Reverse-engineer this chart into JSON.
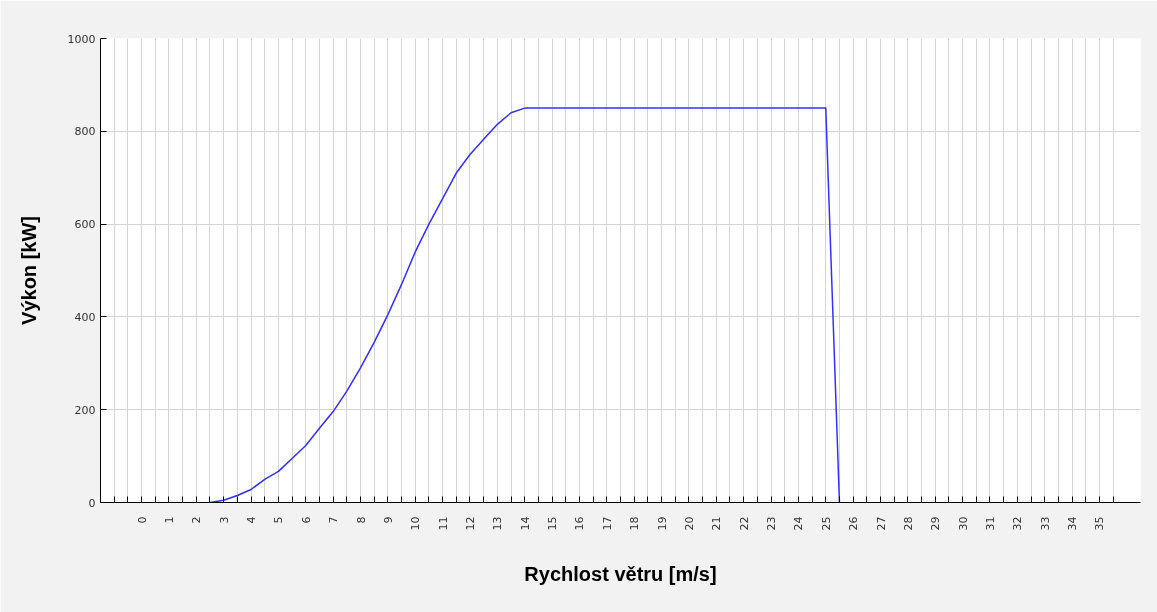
{
  "chart_data": {
    "type": "line",
    "xlabel": "Rychlost větru [m/s]",
    "ylabel": "Výkon [kW]",
    "x": [
      2.5,
      3,
      3.5,
      4,
      4.5,
      5,
      5.5,
      6,
      6.5,
      7,
      7.5,
      8,
      8.5,
      9,
      9.5,
      10,
      10.5,
      11,
      11.5,
      12,
      12.5,
      13,
      13.5,
      14,
      25,
      25.5
    ],
    "series": [
      {
        "color": "#3030ff",
        "values": [
          0,
          5,
          15,
          28,
          50,
          67,
          95,
          123,
          160,
          196,
          240,
          290,
          345,
          405,
          470,
          540,
          600,
          655,
          710,
          750,
          783,
          815,
          840,
          850,
          850,
          0
        ]
      }
    ],
    "xlim": [
      -1.5,
      36.5
    ],
    "xticks": [
      {
        "value": -1,
        "label": null
      },
      {
        "value": -0.5,
        "label": null
      },
      0,
      {
        "value": 0.5,
        "label": null
      },
      1,
      {
        "value": 1.5,
        "label": null
      },
      2,
      {
        "value": 2.5,
        "label": null
      },
      3,
      {
        "value": 3.5,
        "label": null
      },
      4,
      {
        "value": 4.5,
        "label": null
      },
      5,
      {
        "value": 5.5,
        "label": null
      },
      6,
      {
        "value": 6.5,
        "label": null
      },
      7,
      {
        "value": 7.5,
        "label": null
      },
      8,
      {
        "value": 8.5,
        "label": null
      },
      9,
      {
        "value": 9.5,
        "label": null
      },
      10,
      {
        "value": 10.5,
        "label": null
      },
      11,
      {
        "value": 11.5,
        "label": null
      },
      12,
      {
        "value": 12.5,
        "label": null
      },
      13,
      {
        "value": 13.5,
        "label": null
      },
      14,
      {
        "value": 14.5,
        "label": null
      },
      15,
      {
        "value": 15.5,
        "label": null
      },
      16,
      {
        "value": 16.5,
        "label": null
      },
      17,
      {
        "value": 17.5,
        "label": null
      },
      18,
      {
        "value": 18.5,
        "label": null
      },
      19,
      {
        "value": 19.5,
        "label": null
      },
      20,
      {
        "value": 20.5,
        "label": null
      },
      21,
      {
        "value": 21.5,
        "label": null
      },
      22,
      {
        "value": 22.5,
        "label": null
      },
      23,
      {
        "value": 23.5,
        "label": null
      },
      24,
      {
        "value": 24.5,
        "label": null
      },
      25,
      {
        "value": 25.5,
        "label": null
      },
      26,
      {
        "value": 26.5,
        "label": null
      },
      27,
      {
        "value": 27.5,
        "label": null
      },
      28,
      {
        "value": 28.5,
        "label": null
      },
      29,
      {
        "value": 29.5,
        "label": null
      },
      30,
      {
        "value": 30.5,
        "label": null
      },
      31,
      {
        "value": 31.5,
        "label": null
      },
      32,
      {
        "value": 32.5,
        "label": null
      },
      33,
      {
        "value": 33.5,
        "label": null
      },
      34,
      {
        "value": 34.5,
        "label": null
      },
      35,
      {
        "value": 35.5,
        "label": null
      }
    ],
    "ylim": [
      0,
      1000
    ],
    "yticks": [
      0,
      200,
      400,
      600,
      800,
      1000
    ],
    "grid": true,
    "line_style": "solid",
    "marker": "none"
  }
}
